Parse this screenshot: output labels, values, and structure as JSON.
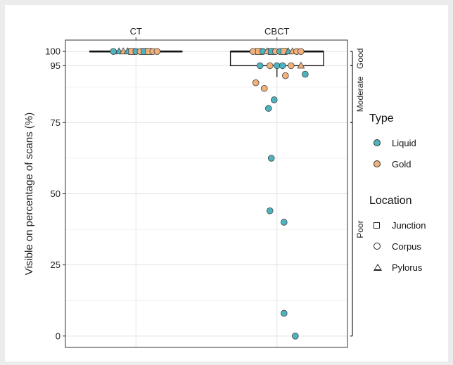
{
  "chart_data": {
    "type": "scatter",
    "ylabel": "Visible on percentage of scans (%)",
    "xlabel": "",
    "categories": [
      "CT",
      "CBCT"
    ],
    "ylim": [
      -4,
      104
    ],
    "yticks": [
      0,
      25,
      50,
      75,
      95,
      100
    ],
    "grid": true,
    "boxplots": [
      {
        "category": "CT",
        "q1": 100,
        "median": 100,
        "q3": 100,
        "whisker_low": 100,
        "whisker_high": 100
      },
      {
        "category": "CBCT",
        "q1": 95,
        "median": 100,
        "q3": 100,
        "whisker_low": 91,
        "whisker_high": 100
      }
    ],
    "bands": [
      {
        "label": "Good",
        "from": 95,
        "to": 100
      },
      {
        "label": "Moderate",
        "from": 75,
        "to": 95
      },
      {
        "label": "Poor",
        "from": 0,
        "to": 75
      }
    ],
    "colors": {
      "Liquid": "#4db3c0",
      "Gold": "#f2b07a"
    },
    "points": [
      {
        "category": "CT",
        "offset": -0.16,
        "y": 100,
        "type": "Liquid",
        "location": "Corpus"
      },
      {
        "category": "CT",
        "offset": -0.12,
        "y": 100,
        "type": "Liquid",
        "location": "Pylorus"
      },
      {
        "category": "CT",
        "offset": -0.09,
        "y": 100,
        "type": "Gold",
        "location": "Pylorus"
      },
      {
        "category": "CT",
        "offset": -0.06,
        "y": 100,
        "type": "Liquid",
        "location": "Pylorus"
      },
      {
        "category": "CT",
        "offset": -0.03,
        "y": 100,
        "type": "Gold",
        "location": "Junction"
      },
      {
        "category": "CT",
        "offset": 0.0,
        "y": 100,
        "type": "Liquid",
        "location": "Corpus"
      },
      {
        "category": "CT",
        "offset": 0.03,
        "y": 100,
        "type": "Gold",
        "location": "Corpus"
      },
      {
        "category": "CT",
        "offset": 0.06,
        "y": 100,
        "type": "Liquid",
        "location": "Junction"
      },
      {
        "category": "CT",
        "offset": 0.09,
        "y": 100,
        "type": "Gold",
        "location": "Junction"
      },
      {
        "category": "CT",
        "offset": 0.12,
        "y": 100,
        "type": "Gold",
        "location": "Corpus"
      },
      {
        "category": "CT",
        "offset": 0.15,
        "y": 100,
        "type": "Gold",
        "location": "Corpus"
      },
      {
        "category": "CBCT",
        "offset": -0.17,
        "y": 100,
        "type": "Gold",
        "location": "Corpus"
      },
      {
        "category": "CBCT",
        "offset": -0.13,
        "y": 100,
        "type": "Gold",
        "location": "Junction"
      },
      {
        "category": "CBCT",
        "offset": -0.1,
        "y": 100,
        "type": "Liquid",
        "location": "Corpus"
      },
      {
        "category": "CBCT",
        "offset": -0.07,
        "y": 100,
        "type": "Gold",
        "location": "Pylorus"
      },
      {
        "category": "CBCT",
        "offset": -0.04,
        "y": 100,
        "type": "Liquid",
        "location": "Junction"
      },
      {
        "category": "CBCT",
        "offset": -0.01,
        "y": 100,
        "type": "Gold",
        "location": "Corpus"
      },
      {
        "category": "CBCT",
        "offset": 0.02,
        "y": 100,
        "type": "Liquid",
        "location": "Corpus"
      },
      {
        "category": "CBCT",
        "offset": 0.05,
        "y": 100,
        "type": "Gold",
        "location": "Junction"
      },
      {
        "category": "CBCT",
        "offset": 0.08,
        "y": 100,
        "type": "Liquid",
        "location": "Pylorus"
      },
      {
        "category": "CBCT",
        "offset": 0.11,
        "y": 100,
        "type": "Gold",
        "location": "Pylorus"
      },
      {
        "category": "CBCT",
        "offset": 0.14,
        "y": 100,
        "type": "Gold",
        "location": "Corpus"
      },
      {
        "category": "CBCT",
        "offset": 0.17,
        "y": 100,
        "type": "Gold",
        "location": "Corpus"
      },
      {
        "category": "CBCT",
        "offset": -0.12,
        "y": 95,
        "type": "Liquid",
        "location": "Corpus"
      },
      {
        "category": "CBCT",
        "offset": -0.05,
        "y": 95,
        "type": "Gold",
        "location": "Corpus"
      },
      {
        "category": "CBCT",
        "offset": 0.0,
        "y": 95,
        "type": "Liquid",
        "location": "Corpus"
      },
      {
        "category": "CBCT",
        "offset": 0.04,
        "y": 95,
        "type": "Liquid",
        "location": "Corpus"
      },
      {
        "category": "CBCT",
        "offset": 0.1,
        "y": 95,
        "type": "Gold",
        "location": "Corpus"
      },
      {
        "category": "CBCT",
        "offset": 0.17,
        "y": 95,
        "type": "Gold",
        "location": "Pylorus"
      },
      {
        "category": "CBCT",
        "offset": 0.06,
        "y": 91.5,
        "type": "Gold",
        "location": "Corpus"
      },
      {
        "category": "CBCT",
        "offset": 0.2,
        "y": 92,
        "type": "Liquid",
        "location": "Corpus"
      },
      {
        "category": "CBCT",
        "offset": -0.15,
        "y": 89,
        "type": "Gold",
        "location": "Corpus"
      },
      {
        "category": "CBCT",
        "offset": -0.09,
        "y": 87,
        "type": "Gold",
        "location": "Corpus"
      },
      {
        "category": "CBCT",
        "offset": -0.02,
        "y": 83,
        "type": "Liquid",
        "location": "Corpus"
      },
      {
        "category": "CBCT",
        "offset": -0.06,
        "y": 80,
        "type": "Liquid",
        "location": "Corpus"
      },
      {
        "category": "CBCT",
        "offset": -0.04,
        "y": 62.5,
        "type": "Liquid",
        "location": "Corpus"
      },
      {
        "category": "CBCT",
        "offset": -0.05,
        "y": 44,
        "type": "Liquid",
        "location": "Corpus"
      },
      {
        "category": "CBCT",
        "offset": 0.05,
        "y": 40,
        "type": "Liquid",
        "location": "Corpus"
      },
      {
        "category": "CBCT",
        "offset": 0.05,
        "y": 8,
        "type": "Liquid",
        "location": "Corpus"
      },
      {
        "category": "CBCT",
        "offset": 0.13,
        "y": 0,
        "type": "Liquid",
        "location": "Corpus"
      }
    ]
  },
  "legend": {
    "type": {
      "title": "Type",
      "items": [
        {
          "label": "Liquid",
          "color": "#4db3c0"
        },
        {
          "label": "Gold",
          "color": "#f2b07a"
        }
      ]
    },
    "location": {
      "title": "Location",
      "items": [
        {
          "label": "Junction",
          "shape": "square"
        },
        {
          "label": "Corpus",
          "shape": "circle"
        },
        {
          "label": "Pylorus",
          "shape": "triangle"
        }
      ]
    }
  }
}
